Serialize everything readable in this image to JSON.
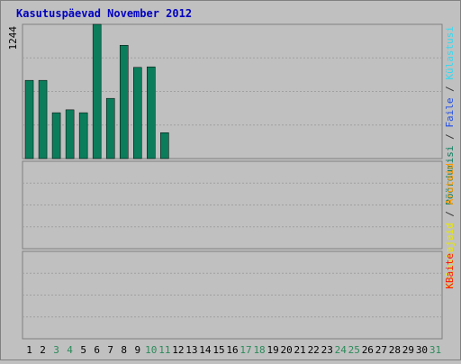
{
  "title": "Kasutuspäevad November 2012",
  "colors": {
    "background": "#c0c0c0",
    "title": "#0000c0",
    "visits": "#0b7d5b",
    "pages": "#1f4de6",
    "hits": "#33d9f0",
    "visitors": "#ffff33",
    "visits_orange": "#ff9900",
    "bytes": "#ff1111",
    "weekend_label": "#2b8a5a",
    "weekday_label": "#000000"
  },
  "right_labels": {
    "top": [
      {
        "text": "Pöördumisi",
        "color": "#0b7d5b"
      },
      {
        "text": " / ",
        "color": "#333333"
      },
      {
        "text": "Faile",
        "color": "#1f4de6"
      },
      {
        "text": " / ",
        "color": "#333333"
      },
      {
        "text": "Külastusi",
        "color": "#33d9f0"
      }
    ],
    "middle": [
      {
        "text": "Külastajaid",
        "color": "#e8e800"
      },
      {
        "text": " / ",
        "color": "#333333"
      },
      {
        "text": "Aruteid",
        "color": "#ff9900"
      }
    ],
    "bottom": [
      {
        "text": "KBaite",
        "color": "#ff1111"
      }
    ]
  },
  "chart_data": [
    {
      "type": "bar",
      "panel": "top",
      "max_label": "1244",
      "ylim": [
        0,
        1244
      ],
      "categories": [
        "1",
        "2",
        "3",
        "4",
        "5",
        "6",
        "7",
        "8",
        "9",
        "10",
        "11",
        "12",
        "13",
        "14",
        "15",
        "16",
        "17",
        "18",
        "19",
        "20",
        "21",
        "22",
        "23",
        "24",
        "25",
        "26",
        "27",
        "28",
        "29",
        "30",
        "31"
      ],
      "weekend": [
        "3",
        "4",
        "10",
        "11",
        "17",
        "18",
        "24",
        "25",
        "31"
      ],
      "series": [
        {
          "name": "Pöördumisi",
          "values": [
            725,
            725,
            425,
            452,
            425,
            1244,
            558,
            1050,
            845,
            850,
            240,
            0,
            0,
            0,
            0,
            0,
            0,
            0,
            0,
            0,
            0,
            0,
            0,
            0,
            0,
            0,
            0,
            0,
            0,
            0,
            0
          ]
        },
        {
          "name": "Faile",
          "values": [
            0,
            0,
            0,
            0,
            0,
            0,
            0,
            0,
            0,
            0,
            0,
            0,
            0,
            0,
            0,
            0,
            0,
            0,
            0,
            0,
            0,
            0,
            0,
            0,
            0,
            0,
            0,
            0,
            0,
            0,
            0
          ]
        },
        {
          "name": "Külastusi",
          "values": [
            0,
            0,
            0,
            0,
            0,
            0,
            0,
            0,
            0,
            0,
            0,
            0,
            0,
            0,
            0,
            0,
            0,
            0,
            0,
            0,
            0,
            0,
            0,
            0,
            0,
            0,
            0,
            0,
            0,
            0,
            0
          ]
        }
      ]
    }
  ]
}
